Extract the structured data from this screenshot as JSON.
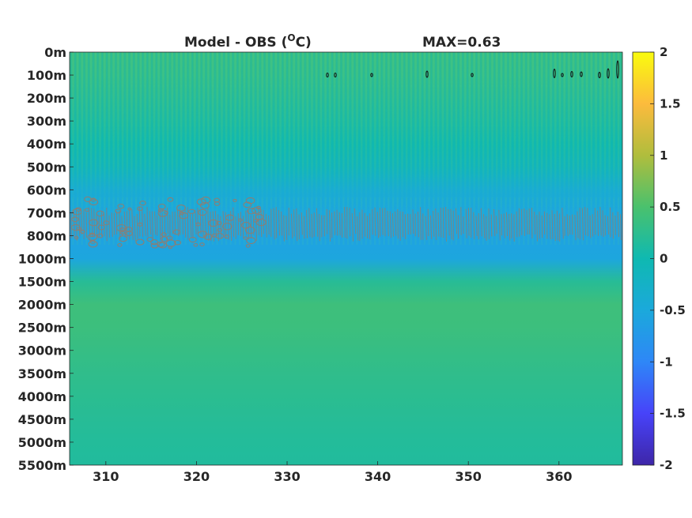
{
  "chart_data": {
    "type": "heatmap",
    "title_left": "Model - OBS (",
    "title_degree": "O",
    "title_unit": "C)",
    "title_right": "MAX=0.63",
    "x_ticks": [
      "310",
      "320",
      "330",
      "340",
      "350",
      "360"
    ],
    "x_tick_values": [
      310,
      320,
      330,
      340,
      350,
      360
    ],
    "xlim": [
      306,
      367
    ],
    "y_ticks": [
      "0m",
      "100m",
      "200m",
      "300m",
      "400m",
      "500m",
      "600m",
      "700m",
      "800m",
      "1000m",
      "1500m",
      "2000m",
      "2500m",
      "3000m",
      "3500m",
      "4000m",
      "4500m",
      "5000m",
      "5500m"
    ],
    "colorbar": {
      "ticks": [
        "2",
        "1.5",
        "1",
        "0.5",
        "0",
        "-0.5",
        "-1",
        "-1.5",
        "-2"
      ],
      "tick_values": [
        2,
        1.5,
        1,
        0.5,
        0,
        -0.5,
        -1,
        -1.5,
        -2
      ],
      "clim": [
        -2,
        2
      ],
      "colormap": "parula"
    },
    "depth_profile": [
      {
        "depth": "0m",
        "value": 0.32
      },
      {
        "depth": "100m",
        "value": 0.28
      },
      {
        "depth": "200m",
        "value": 0.2
      },
      {
        "depth": "300m",
        "value": 0.12
      },
      {
        "depth": "400m",
        "value": 0.02
      },
      {
        "depth": "500m",
        "value": -0.12
      },
      {
        "depth": "600m",
        "value": -0.4
      },
      {
        "depth": "700m",
        "value": -0.55
      },
      {
        "depth": "800m",
        "value": -0.6
      },
      {
        "depth": "1000m",
        "value": -0.55
      },
      {
        "depth": "1500m",
        "value": 0.2
      },
      {
        "depth": "2000m",
        "value": 0.4
      },
      {
        "depth": "2500m",
        "value": 0.38
      },
      {
        "depth": "3000m",
        "value": 0.33
      },
      {
        "depth": "3500m",
        "value": 0.28
      },
      {
        "depth": "4000m",
        "value": 0.24
      },
      {
        "depth": "4500m",
        "value": 0.2
      },
      {
        "depth": "5000m",
        "value": 0.17
      },
      {
        "depth": "5500m",
        "value": 0.15
      }
    ]
  }
}
